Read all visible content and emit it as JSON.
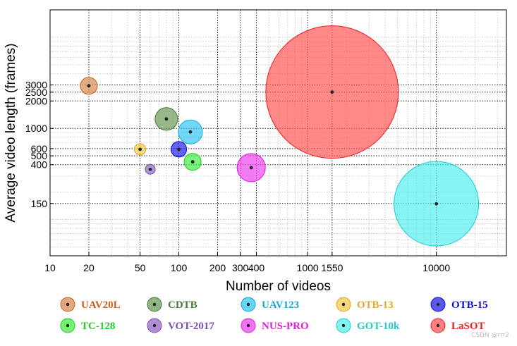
{
  "chart_data": {
    "type": "scatter",
    "subtype": "bubble",
    "title": "",
    "xlabel": "Number of videos",
    "ylabel": "Average video length (frames)",
    "xscale": "log",
    "yscale": "log",
    "xlim": [
      10,
      35000
    ],
    "ylim": [
      40,
      20000
    ],
    "xticks": [
      10,
      20,
      50,
      100,
      200,
      300,
      400,
      1000,
      1550,
      10000
    ],
    "xtick_labels": [
      "10",
      "20",
      "50",
      "100",
      "200",
      "300",
      "400",
      "1000",
      "1550",
      "10000"
    ],
    "yticks": [
      150,
      400,
      500,
      600,
      1000,
      2000,
      2500,
      3000
    ],
    "ytick_labels": [
      "150",
      "400",
      "500",
      "600",
      "1000",
      "2000",
      "2500",
      "3000"
    ],
    "grid": true,
    "legend_position": "bottom",
    "series": [
      {
        "name": "UAV20L",
        "x": 20,
        "y": 2934,
        "size": 12,
        "color": "#d98a52",
        "text_color": "#c86020"
      },
      {
        "name": "CDTB",
        "x": 80,
        "y": 1270,
        "size": 16,
        "color": "#6e9a58",
        "text_color": "#4a7a3a"
      },
      {
        "name": "UAV123",
        "x": 123,
        "y": 915,
        "size": 17,
        "color": "#34c6f2",
        "text_color": "#1aa7dd"
      },
      {
        "name": "OTB-13",
        "x": 50,
        "y": 590,
        "size": 8,
        "color": "#f2c84b",
        "text_color": "#e0a829"
      },
      {
        "name": "OTB-15",
        "x": 100,
        "y": 590,
        "size": 11,
        "color": "#2222ee",
        "text_color": "#1111cc"
      },
      {
        "name": "TC-128",
        "x": 128,
        "y": 430,
        "size": 12,
        "color": "#44ee44",
        "text_color": "#22cc22"
      },
      {
        "name": "VOT-2017",
        "x": 60,
        "y": 356,
        "size": 7,
        "color": "#9467c4",
        "text_color": "#7b4fb0"
      },
      {
        "name": "NUS-PRO",
        "x": 365,
        "y": 371,
        "size": 20,
        "color": "#ee44ee",
        "text_color": "#dd22dd"
      },
      {
        "name": "GOT-10k",
        "x": 10000,
        "y": 149,
        "size": 60,
        "color": "#55eeee",
        "text_color": "#22cccc"
      },
      {
        "name": "LaSOT",
        "x": 1550,
        "y": 2506,
        "size": 94,
        "color": "#ff5555",
        "text_color": "#ee2222"
      }
    ]
  },
  "watermark": "CSDN @rrr2"
}
